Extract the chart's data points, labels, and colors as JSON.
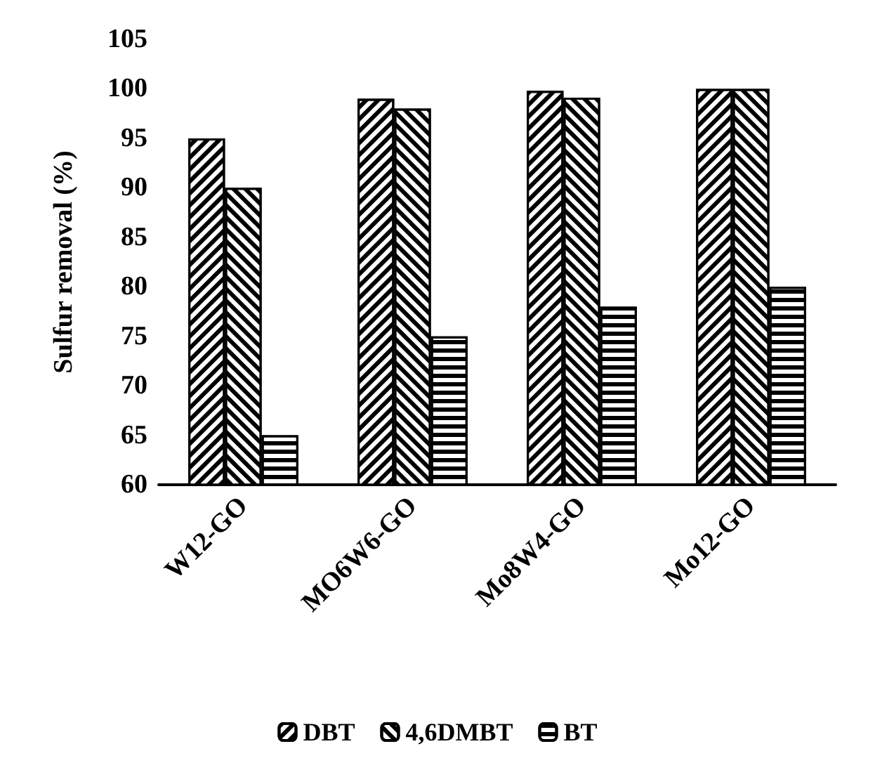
{
  "chart_data": {
    "type": "bar",
    "ylabel": "Sulfur removal (%)",
    "categories": [
      "W12-GO",
      "MO6W6-GO",
      "Mo8W4-GO",
      "Mo12-GO"
    ],
    "series": [
      {
        "name": "DBT",
        "color": "#000000",
        "values": [
          95,
          99,
          99.8,
          100
        ]
      },
      {
        "name": "4,6DMBT",
        "color": "#000000",
        "values": [
          90,
          98,
          99.1,
          100
        ]
      },
      {
        "name": "BT",
        "color": "#000000",
        "values": [
          65,
          75,
          78,
          80
        ]
      }
    ],
    "ylim": [
      60,
      105
    ],
    "yticks": [
      60,
      65,
      70,
      75,
      80,
      85,
      90,
      95,
      100,
      105
    ],
    "grid": false,
    "legend": "bottom"
  }
}
